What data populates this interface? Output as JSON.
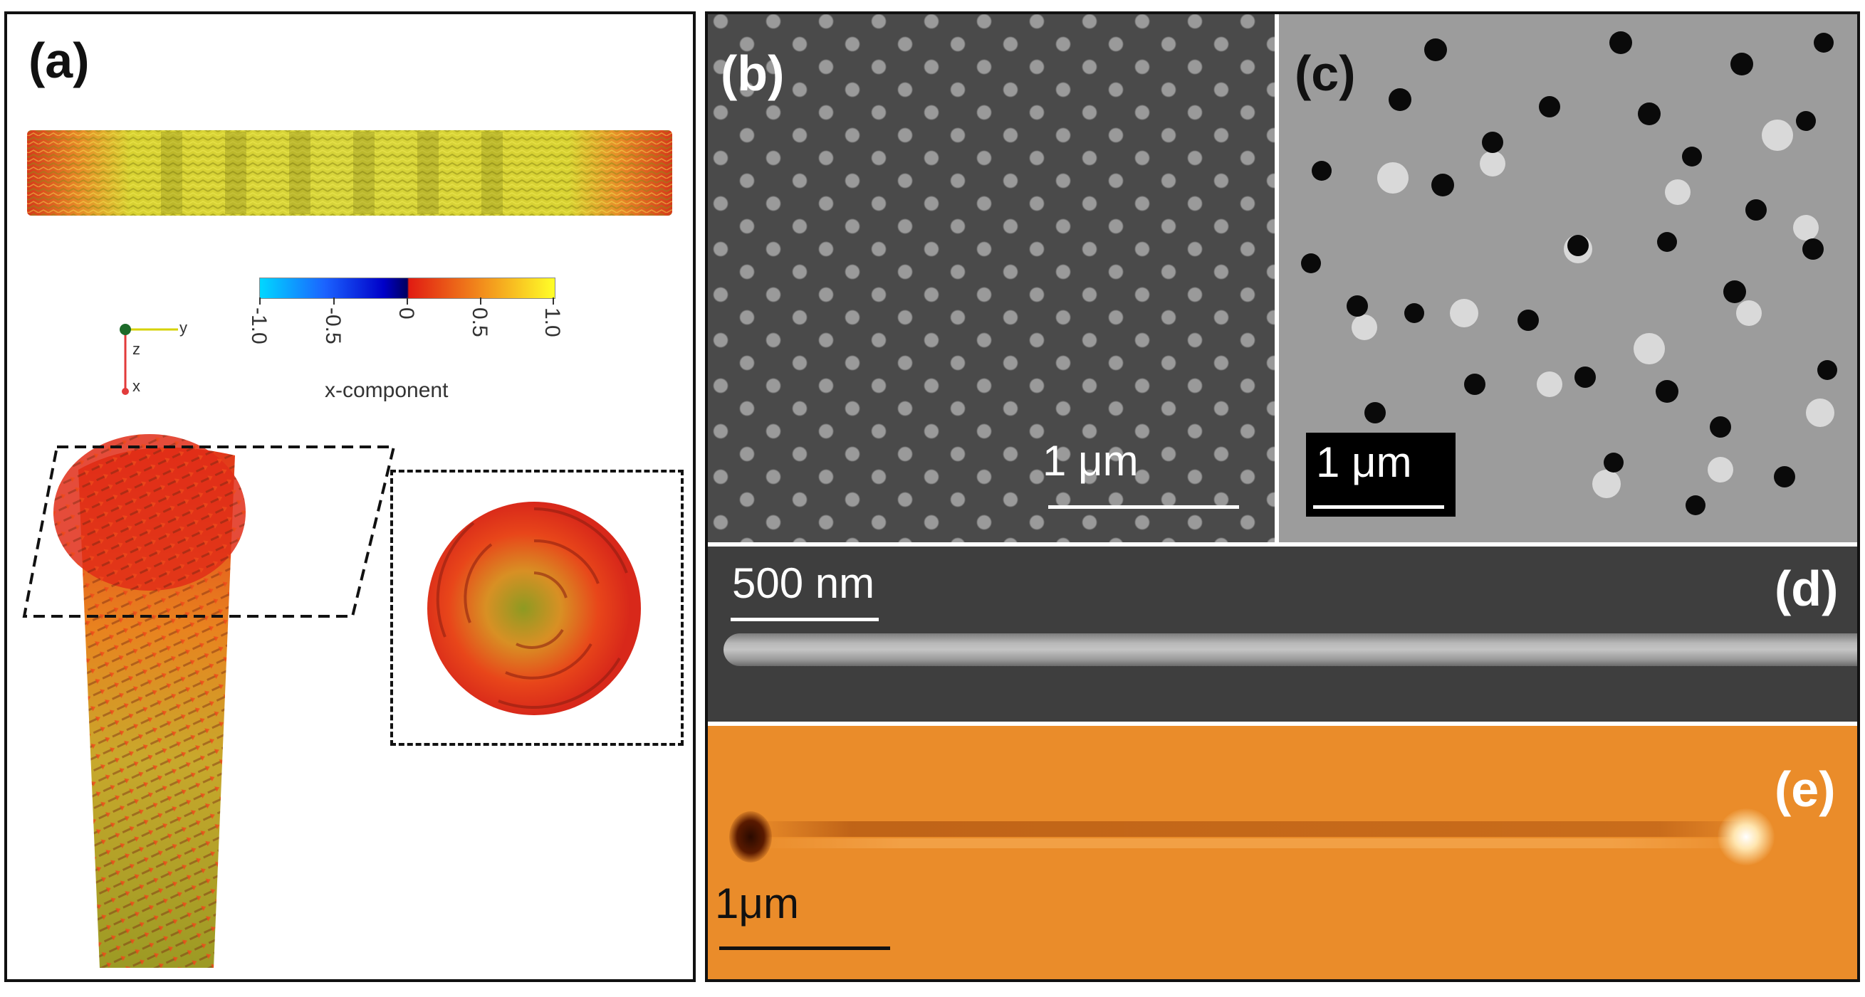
{
  "figure": {
    "panels": {
      "a": {
        "label": "(a)",
        "colorbar": {
          "ticks": [
            "-1.0",
            "-0.5",
            "0",
            "0.5",
            "1.0"
          ],
          "axis_label": "x-component",
          "colors": [
            "#00d8ff",
            "#0000c8",
            "#e11b12",
            "#f28c1c",
            "#ffff28"
          ]
        },
        "triad_labels": {
          "y": "y",
          "z": "z",
          "x": "x"
        }
      },
      "b": {
        "label": "(b)",
        "scalebar": "1 μm"
      },
      "c": {
        "label": "(c)",
        "scalebar": "1 μm"
      },
      "d": {
        "label": "(d)",
        "scalebar": "500 nm"
      },
      "e": {
        "label": "(e)",
        "scalebar": "1μm"
      }
    }
  }
}
